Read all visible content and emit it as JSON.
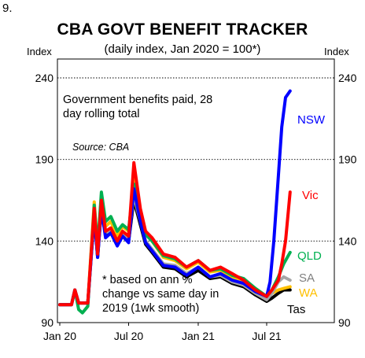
{
  "figure_number": "9.",
  "chart_data": {
    "type": "line",
    "title": "CBA GOVT BENEFIT TRACKER",
    "subtitle": "(daily index, Jan 2020 = 100*)",
    "ylabel_left": "Index",
    "ylabel_right": "Index",
    "ylim": [
      90,
      240
    ],
    "yticks": [
      "90",
      "140",
      "190",
      "240"
    ],
    "xticks": [
      "Jan 20",
      "Jul 20",
      "Jan 21",
      "Jul 21"
    ],
    "x_range": [
      "2020-01",
      "2021-09"
    ],
    "grid": "horizontal dotted",
    "annotations": {
      "description": "Government benefits paid, 28 day rolling total",
      "description_lines": [
        "Government benefits paid, 28",
        "day rolling total"
      ],
      "source": "Source: CBA",
      "footnote_lines": [
        "* based on ann %",
        "change vs same day in",
        "2019 (1wk smooth)"
      ]
    },
    "series": [
      {
        "name": "Tas",
        "color": "#000000",
        "x": [
          "2020-01-01",
          "2020-02-01",
          "2020-02-10",
          "2020-02-20",
          "2020-03-01",
          "2020-03-15",
          "2020-04-01",
          "2020-04-10",
          "2020-04-20",
          "2020-05-01",
          "2020-05-15",
          "2020-06-01",
          "2020-06-15",
          "2020-07-01",
          "2020-07-15",
          "2020-08-01",
          "2020-08-15",
          "2020-09-01",
          "2020-10-01",
          "2020-11-01",
          "2020-12-01",
          "2021-01-01",
          "2021-02-01",
          "2021-03-01",
          "2021-04-01",
          "2021-05-01",
          "2021-06-01",
          "2021-07-01",
          "2021-07-15",
          "2021-08-01",
          "2021-08-15",
          "2021-09-01"
        ],
        "y": [
          101,
          101,
          110,
          102,
          102,
          102,
          156,
          130,
          160,
          143,
          145,
          138,
          143,
          140,
          165,
          150,
          138,
          133,
          124,
          123,
          118,
          122,
          117,
          118,
          114,
          112,
          107,
          103,
          105,
          108,
          110,
          110
        ]
      },
      {
        "name": "WA",
        "color": "#ffc000",
        "x": [
          "2020-01-01",
          "2020-02-01",
          "2020-02-10",
          "2020-02-20",
          "2020-03-01",
          "2020-03-15",
          "2020-04-01",
          "2020-04-10",
          "2020-04-20",
          "2020-05-01",
          "2020-05-15",
          "2020-06-01",
          "2020-06-15",
          "2020-07-01",
          "2020-07-15",
          "2020-08-01",
          "2020-08-15",
          "2020-09-01",
          "2020-10-01",
          "2020-11-01",
          "2020-12-01",
          "2021-01-01",
          "2021-02-01",
          "2021-03-01",
          "2021-04-01",
          "2021-05-01",
          "2021-06-01",
          "2021-07-01",
          "2021-07-15",
          "2021-08-01",
          "2021-08-15",
          "2021-09-01"
        ],
        "y": [
          101,
          101,
          110,
          102,
          102,
          102,
          164,
          135,
          168,
          149,
          152,
          143,
          149,
          146,
          178,
          158,
          144,
          140,
          130,
          128,
          123,
          127,
          121,
          122,
          118,
          116,
          111,
          106,
          108,
          110,
          111,
          112
        ]
      },
      {
        "name": "SA",
        "color": "#a6a6a6",
        "x": [
          "2020-01-01",
          "2020-02-01",
          "2020-02-10",
          "2020-02-20",
          "2020-03-01",
          "2020-03-15",
          "2020-04-01",
          "2020-04-10",
          "2020-04-20",
          "2020-05-01",
          "2020-05-15",
          "2020-06-01",
          "2020-06-15",
          "2020-07-01",
          "2020-07-15",
          "2020-08-01",
          "2020-08-15",
          "2020-09-01",
          "2020-10-01",
          "2020-11-01",
          "2020-12-01",
          "2021-01-01",
          "2021-02-01",
          "2021-03-01",
          "2021-04-01",
          "2021-05-01",
          "2021-06-01",
          "2021-07-01",
          "2021-07-15",
          "2021-08-01",
          "2021-08-15",
          "2021-09-01"
        ],
        "y": [
          101,
          101,
          110,
          102,
          102,
          102,
          158,
          132,
          162,
          145,
          147,
          140,
          145,
          142,
          168,
          152,
          140,
          135,
          126,
          125,
          120,
          124,
          118,
          119,
          115,
          113,
          108,
          104,
          108,
          115,
          118,
          116
        ]
      },
      {
        "name": "QLD",
        "color": "#00b050",
        "x": [
          "2020-01-01",
          "2020-02-01",
          "2020-02-10",
          "2020-02-20",
          "2020-03-01",
          "2020-03-15",
          "2020-04-01",
          "2020-04-10",
          "2020-04-20",
          "2020-05-01",
          "2020-05-15",
          "2020-06-01",
          "2020-06-15",
          "2020-07-01",
          "2020-07-15",
          "2020-08-01",
          "2020-08-15",
          "2020-09-01",
          "2020-10-01",
          "2020-11-01",
          "2020-12-01",
          "2021-01-01",
          "2021-02-01",
          "2021-03-01",
          "2021-04-01",
          "2021-05-01",
          "2021-06-01",
          "2021-07-01",
          "2021-07-15",
          "2021-08-01",
          "2021-08-15",
          "2021-09-01"
        ],
        "y": [
          101,
          101,
          110,
          98,
          96,
          100,
          162,
          136,
          170,
          152,
          155,
          146,
          150,
          147,
          175,
          157,
          144,
          140,
          131,
          129,
          124,
          128,
          122,
          123,
          119,
          117,
          111,
          106,
          110,
          118,
          126,
          133
        ]
      },
      {
        "name": "NSW",
        "color": "#0000ff",
        "x": [
          "2020-01-01",
          "2020-02-01",
          "2020-02-10",
          "2020-02-20",
          "2020-03-01",
          "2020-03-15",
          "2020-04-01",
          "2020-04-10",
          "2020-04-20",
          "2020-05-01",
          "2020-05-15",
          "2020-06-01",
          "2020-06-15",
          "2020-07-01",
          "2020-07-15",
          "2020-08-01",
          "2020-08-15",
          "2020-09-01",
          "2020-10-01",
          "2020-11-01",
          "2020-12-01",
          "2021-01-01",
          "2021-02-01",
          "2021-03-01",
          "2021-04-01",
          "2021-05-01",
          "2021-06-01",
          "2021-07-01",
          "2021-07-10",
          "2021-07-20",
          "2021-08-01",
          "2021-08-10",
          "2021-08-20",
          "2021-09-01"
        ],
        "y": [
          101,
          101,
          110,
          102,
          102,
          102,
          155,
          130,
          160,
          142,
          145,
          137,
          143,
          139,
          172,
          152,
          139,
          134,
          125,
          124,
          119,
          124,
          118,
          120,
          116,
          114,
          109,
          106,
          115,
          140,
          180,
          210,
          228,
          232
        ]
      },
      {
        "name": "Vic",
        "color": "#ff0000",
        "x": [
          "2020-01-01",
          "2020-02-01",
          "2020-02-10",
          "2020-02-20",
          "2020-03-01",
          "2020-03-15",
          "2020-04-01",
          "2020-04-10",
          "2020-04-20",
          "2020-05-01",
          "2020-05-15",
          "2020-06-01",
          "2020-06-15",
          "2020-07-01",
          "2020-07-15",
          "2020-08-01",
          "2020-08-15",
          "2020-09-01",
          "2020-10-01",
          "2020-11-01",
          "2020-12-01",
          "2021-01-01",
          "2021-02-01",
          "2021-03-01",
          "2021-04-01",
          "2021-05-01",
          "2021-06-01",
          "2021-07-01",
          "2021-07-15",
          "2021-08-01",
          "2021-08-10",
          "2021-08-20",
          "2021-09-01"
        ],
        "y": [
          101,
          101,
          110,
          102,
          102,
          102,
          160,
          132,
          165,
          146,
          148,
          140,
          146,
          143,
          188,
          160,
          146,
          142,
          132,
          130,
          124,
          128,
          122,
          124,
          120,
          116,
          110,
          106,
          110,
          116,
          126,
          140,
          170
        ]
      }
    ]
  }
}
